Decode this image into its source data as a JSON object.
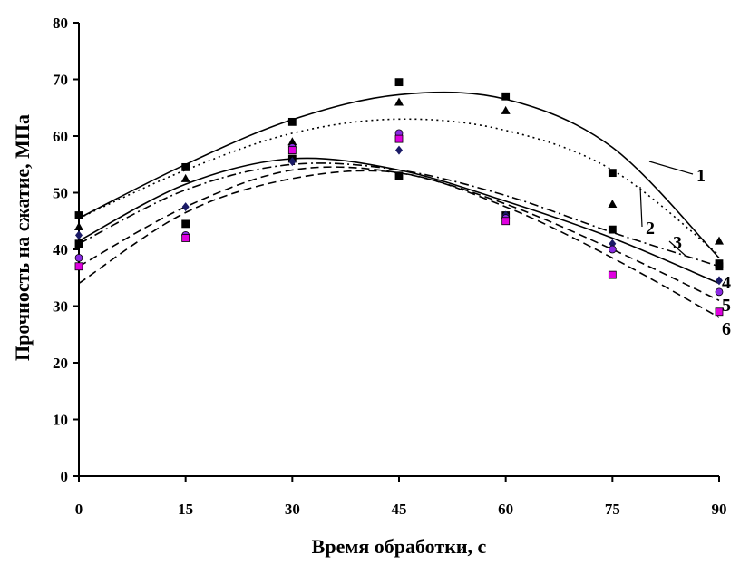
{
  "chart_data": {
    "type": "scatter",
    "title": "",
    "xlabel": "Время обработки, с",
    "ylabel": "Прочность на сжатие, МПа",
    "x_ticks": [
      0,
      15,
      30,
      45,
      60,
      75,
      90
    ],
    "y_ticks": [
      0,
      10,
      20,
      30,
      40,
      50,
      60,
      70,
      80
    ],
    "xlim": [
      0,
      90
    ],
    "ylim": [
      0,
      80
    ],
    "grid": false,
    "x": [
      0,
      15,
      30,
      45,
      60,
      75,
      90
    ],
    "series": [
      {
        "name": "1",
        "marker": "square",
        "marker_color": "#000000",
        "line_style": "solid",
        "values": [
          46,
          54.5,
          62.5,
          69.5,
          67,
          53.5,
          37.5
        ],
        "fit": [
          45.5,
          55.0,
          62.9,
          67.3,
          66.5,
          58.0,
          38.5
        ]
      },
      {
        "name": "2",
        "marker": "triangle",
        "marker_color": "#000000",
        "line_style": "dotted",
        "values": [
          44,
          52.5,
          59,
          66,
          64.5,
          48,
          41.5
        ],
        "fit": [
          45.5,
          54.0,
          60.5,
          63.0,
          61.0,
          54.0,
          39.0
        ]
      },
      {
        "name": "3",
        "marker": "square",
        "marker_color": "#000000",
        "line_style": "dashdot",
        "values": [
          41,
          44.5,
          56,
          53,
          46,
          43.5,
          37
        ],
        "fit": [
          41.0,
          50.5,
          55.0,
          54.0,
          49.5,
          43.0,
          37.0
        ]
      },
      {
        "name": "4",
        "marker": "diamond",
        "marker_color": "#1a1a66",
        "line_style": "solid",
        "values": [
          42.5,
          47.5,
          55.5,
          57.5,
          46,
          41,
          34.5
        ],
        "fit": [
          41.5,
          51.5,
          56.0,
          54.0,
          48.5,
          42.0,
          34.0
        ]
      },
      {
        "name": "5",
        "marker": "circle",
        "marker_color": "#8a2be2",
        "line_style": "dashed",
        "values": [
          38.5,
          42.5,
          58,
          60.5,
          45.5,
          40,
          32.5
        ],
        "fit": [
          37.0,
          47.5,
          54.0,
          53.5,
          48.0,
          40.0,
          31.0
        ]
      },
      {
        "name": "6",
        "marker": "square",
        "marker_color": "#e000e0",
        "line_style": "dashed",
        "values": [
          37,
          42,
          57.5,
          59.5,
          45,
          35.5,
          29
        ],
        "fit": [
          34.0,
          46.5,
          52.5,
          53.5,
          47.5,
          38.5,
          28.0
        ]
      }
    ]
  }
}
